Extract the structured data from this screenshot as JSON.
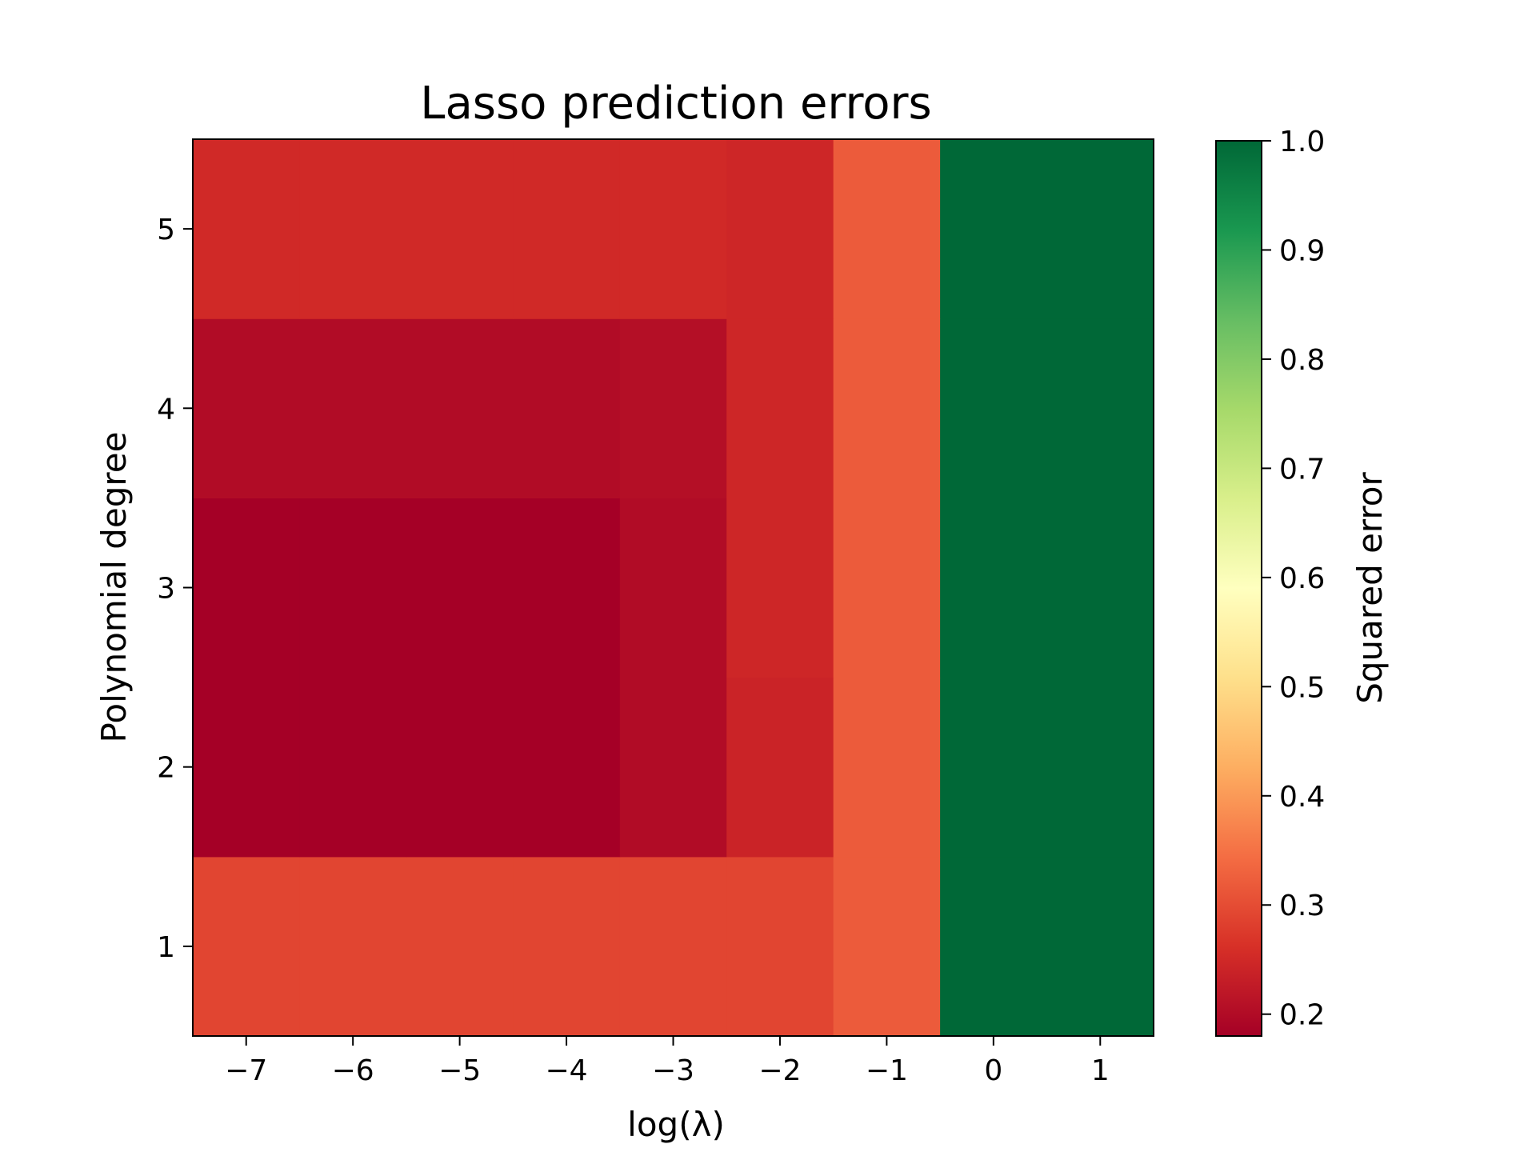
{
  "chart_data": {
    "type": "heatmap",
    "title": "Lasso prediction errors",
    "xlabel": "log(λ)",
    "ylabel": "Polynomial degree",
    "colorbar_label": "Squared error",
    "colormap": "RdYlGn",
    "x": [
      -7,
      -6,
      -5,
      -4,
      -3,
      -2,
      -1,
      0,
      1
    ],
    "y": [
      1,
      2,
      3,
      4,
      5
    ],
    "x_tick_labels": [
      "−7",
      "−6",
      "−5",
      "−4",
      "−3",
      "−2",
      "−1",
      "0",
      "1"
    ],
    "y_tick_labels": [
      "1",
      "2",
      "3",
      "4",
      "5"
    ],
    "xlim": [
      -7.5,
      1.5
    ],
    "ylim": [
      0.5,
      5.5
    ],
    "color_range": [
      0.18,
      1.0
    ],
    "colorbar_ticks": [
      0.2,
      0.3,
      0.4,
      0.5,
      0.6,
      0.7,
      0.8,
      0.9,
      1.0
    ],
    "colorbar_tick_labels": [
      "0.2",
      "0.3",
      "0.4",
      "0.5",
      "0.6",
      "0.7",
      "0.8",
      "0.9",
      "1.0"
    ],
    "values": [
      [
        0.29,
        0.29,
        0.29,
        0.29,
        0.29,
        0.29,
        0.32,
        1.0,
        1.0
      ],
      [
        0.18,
        0.18,
        0.18,
        0.18,
        0.2,
        0.24,
        0.32,
        1.0,
        1.0
      ],
      [
        0.18,
        0.18,
        0.18,
        0.18,
        0.2,
        0.245,
        0.32,
        1.0,
        1.0
      ],
      [
        0.2,
        0.2,
        0.2,
        0.2,
        0.205,
        0.245,
        0.32,
        1.0,
        1.0
      ],
      [
        0.25,
        0.25,
        0.25,
        0.25,
        0.25,
        0.245,
        0.32,
        1.0,
        1.0
      ]
    ],
    "grid": false
  }
}
